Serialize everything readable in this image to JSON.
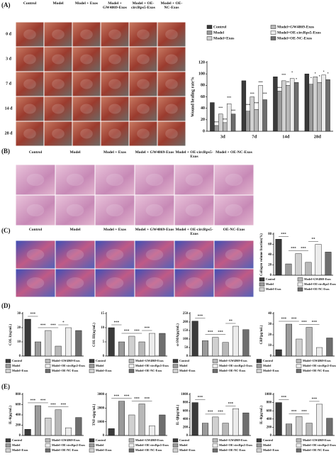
{
  "panels": {
    "A": {
      "label": "(A)",
      "columns": [
        "Control",
        "Model",
        "Model + Exos",
        "Model + GW4869-Exos",
        "Model + OE-circRps5-Exos",
        "Model + OE-NC-Exos"
      ],
      "rows": [
        "0 d",
        "3 d",
        "7 d",
        "14 d",
        "28 d"
      ]
    },
    "B": {
      "label": "(B)",
      "columns": [
        "Control",
        "Model",
        "Model + Exos",
        "Model + GW4869-Exos",
        "Model + OE-circRps5-Exos",
        "Model + OE-NC-Exos"
      ]
    },
    "C": {
      "label": "(C)",
      "columns": [
        "Control",
        "Model",
        "Model + Exos",
        "Model + GW4869-Exos",
        "Model + OE-circRps5-Exos",
        "OE-NC-Exos"
      ]
    },
    "D": {
      "label": "(D)"
    },
    "E": {
      "label": "(E)"
    }
  },
  "chart_data": [
    {
      "type": "grouped-bar",
      "ylabel": "Wound healing rate%",
      "categories": [
        "3d",
        "7d",
        "14d",
        "28d"
      ],
      "series": [
        {
          "name": "Control",
          "color": "#3a3a3a",
          "values": [
            50,
            88,
            95,
            100
          ]
        },
        {
          "name": "Model",
          "color": "#9a9a9a",
          "values": [
            10,
            35,
            70,
            82
          ]
        },
        {
          "name": "Model+Exos",
          "color": "#d0d0d0",
          "values": [
            30,
            60,
            88,
            95
          ]
        },
        {
          "name": "Model+GW4869-Exos",
          "color": "#b8b8b8",
          "values": [
            15,
            38,
            80,
            85
          ]
        },
        {
          "name": "Model+OE-circRps5-Exos",
          "color": "#ececec",
          "values": [
            48,
            80,
            92,
            98
          ]
        },
        {
          "name": "Model+OE-NC-Exos",
          "color": "#6e6e6e",
          "values": [
            30,
            55,
            85,
            90
          ]
        }
      ],
      "ylim": [
        0,
        120
      ],
      "yticks": [
        0,
        20,
        40,
        60,
        80,
        100,
        120
      ],
      "annotations": [
        "***",
        "***",
        "***",
        "***",
        "***",
        "***",
        "***",
        "***",
        "***",
        "***",
        "***",
        "***",
        "**",
        "*",
        "*",
        "*",
        "*",
        "*",
        "*",
        "*"
      ]
    },
    {
      "type": "bar",
      "ylabel": "Collagen volume fraction(%)",
      "categories": [
        "Control",
        "Model",
        "Model+Exos",
        "Model+GW4869-Exos",
        "Model+OE-circRps5-Exos",
        "Model+OE-NC-Exos"
      ],
      "colors": [
        "#3a3a3a",
        "#9a9a9a",
        "#d0d0d0",
        "#b8b8b8",
        "#ececec",
        "#6e6e6e"
      ],
      "values": [
        70,
        22,
        42,
        25,
        60,
        45
      ],
      "ylim": [
        0,
        80
      ],
      "yticks": [
        0,
        20,
        40,
        60,
        80
      ],
      "annotations": [
        "***",
        "***",
        "***",
        "**"
      ]
    },
    {
      "type": "bar",
      "ylabel": "COL I(ng/mL)",
      "categories": [
        "Control",
        "Model",
        "Model+Exos",
        "Model+GW4869-Exos",
        "Model+OE-circRps5-Exos",
        "Model+OE-NC-Exos"
      ],
      "colors": [
        "#3a3a3a",
        "#9a9a9a",
        "#d0d0d0",
        "#b8b8b8",
        "#ececec",
        "#6e6e6e"
      ],
      "values": [
        26,
        10,
        18,
        7,
        20,
        18
      ],
      "ylim": [
        0,
        30
      ],
      "yticks": [
        0,
        10,
        20,
        30
      ],
      "annotations": [
        "***",
        "***",
        "***",
        "*"
      ]
    },
    {
      "type": "bar",
      "ylabel": "COL III(ng/mL)",
      "categories": [
        "Control",
        "Model",
        "Model+Exos",
        "Model+GW4869-Exos",
        "Model+OE-circRps5-Exos",
        "Model+OE-NC-Exos"
      ],
      "colors": [
        "#3a3a3a",
        "#9a9a9a",
        "#d0d0d0",
        "#b8b8b8",
        "#ececec",
        "#6e6e6e"
      ],
      "values": [
        10,
        5,
        7,
        5,
        8,
        8
      ],
      "ylim": [
        0,
        15
      ],
      "yticks": [
        0,
        5,
        10,
        15
      ],
      "annotations": [
        "***",
        "***",
        "***",
        "***"
      ]
    },
    {
      "type": "bar",
      "ylabel": "α-SMA(pg/mL)",
      "categories": [
        "Control",
        "Model",
        "Model+Exos",
        "Model+GW4869-Exos",
        "Model+OE-circRps5-Exos",
        "Model+OE-NC-Exos"
      ],
      "colors": [
        "#3a3a3a",
        "#9a9a9a",
        "#d0d0d0",
        "#b8b8b8",
        "#ececec",
        "#6e6e6e"
      ],
      "values": [
        205,
        90,
        110,
        80,
        175,
        155
      ],
      "ylim": [
        0,
        250
      ],
      "yticks": [
        0,
        50,
        100,
        150,
        200,
        250
      ],
      "annotations": [
        "***",
        "***",
        "***",
        "**"
      ]
    },
    {
      "type": "bar",
      "ylabel": "CRP(pg/mL)",
      "categories": [
        "Control",
        "Model",
        "Model+Exos",
        "Model+GW4869-Exos",
        "Model+OE-circRps5-Exos",
        "Model+OE-NC-Exos"
      ],
      "colors": [
        "#3a3a3a",
        "#9a9a9a",
        "#d0d0d0",
        "#b8b8b8",
        "#ececec",
        "#6e6e6e"
      ],
      "values": [
        6,
        30,
        16,
        27,
        8,
        17
      ],
      "ylim": [
        0,
        40
      ],
      "yticks": [
        0,
        10,
        20,
        30,
        40
      ],
      "annotations": [
        "***",
        "***",
        "***",
        "***"
      ]
    },
    {
      "type": "bar",
      "ylabel": "IL-6(pg/mL)",
      "categories": [
        "Control",
        "Model",
        "Model+Exos",
        "Model+GW4869-Exos",
        "Model+OE-circRps5-Exos",
        "Model+OE-NC-Exos"
      ],
      "colors": [
        "#3a3a3a",
        "#9a9a9a",
        "#d0d0d0",
        "#b8b8b8",
        "#ececec",
        "#6e6e6e"
      ],
      "values": [
        120,
        580,
        340,
        500,
        150,
        350
      ],
      "ylim": [
        0,
        800
      ],
      "yticks": [
        0,
        200,
        400,
        600,
        800
      ],
      "annotations": [
        "***",
        "***",
        "***",
        "***"
      ]
    },
    {
      "type": "bar",
      "ylabel": "TNF-α(pg/mL)",
      "categories": [
        "Control",
        "Model",
        "Model+Exos",
        "Model+GW4869-Exos",
        "Model+OE-circRps5-Exos",
        "Model+OE-NC-Exos"
      ],
      "colors": [
        "#3a3a3a",
        "#9a9a9a",
        "#d0d0d0",
        "#b8b8b8",
        "#ececec",
        "#6e6e6e"
      ],
      "values": [
        500,
        2500,
        1500,
        2300,
        700,
        1500
      ],
      "ylim": [
        0,
        3000
      ],
      "yticks": [
        0,
        1000,
        2000,
        3000
      ],
      "annotations": [
        "***",
        "***",
        "***",
        "***"
      ]
    },
    {
      "type": "bar",
      "ylabel": "IL-1β(pg/mL)",
      "categories": [
        "Control",
        "Model",
        "Model+Exos",
        "Model+GW4869-Exos",
        "Model+OE-circRps5-Exos",
        "Model+OE-NC-Exos"
      ],
      "colors": [
        "#3a3a3a",
        "#9a9a9a",
        "#d0d0d0",
        "#b8b8b8",
        "#ececec",
        "#6e6e6e"
      ],
      "values": [
        800,
        300,
        450,
        300,
        650,
        550
      ],
      "ylim": [
        0,
        1000
      ],
      "yticks": [
        0,
        200,
        400,
        600,
        800,
        1000
      ],
      "annotations": [
        "***",
        "***",
        "***",
        "***"
      ]
    },
    {
      "type": "bar",
      "ylabel": "IL-8(pg/mL)",
      "categories": [
        "Control",
        "Model",
        "Model+Exos",
        "Model+GW4869-Exos",
        "Model+OE-circRps5-Exos",
        "Model+OE-NC-Exos"
      ],
      "colors": [
        "#3a3a3a",
        "#9a9a9a",
        "#d0d0d0",
        "#b8b8b8",
        "#ececec",
        "#6e6e6e"
      ],
      "values": [
        800,
        280,
        460,
        300,
        760,
        420
      ],
      "ylim": [
        0,
        1000
      ],
      "yticks": [
        0,
        200,
        400,
        600,
        800,
        1000
      ],
      "annotations": [
        "***",
        "***",
        "***",
        "***"
      ]
    }
  ]
}
